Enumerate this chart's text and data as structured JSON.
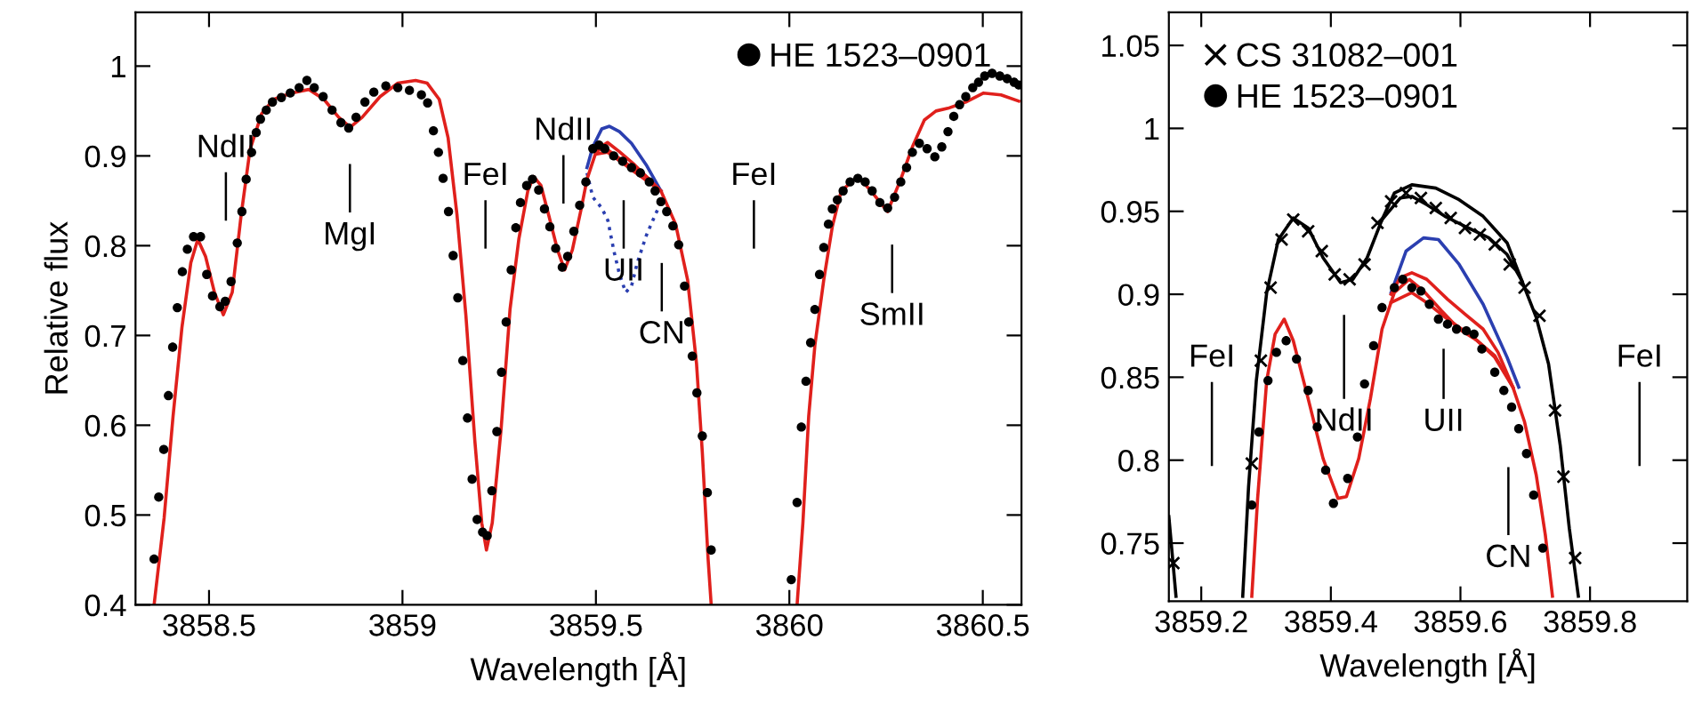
{
  "chart_data": [
    {
      "type": "line",
      "xlabel": "Wavelength [Å]",
      "ylabel": "Relative flux",
      "xlim": [
        3858.31,
        3860.6
      ],
      "ylim": [
        0.4,
        1.06
      ],
      "xticks": [
        3858.5,
        3859,
        3859.5,
        3860,
        3860.5
      ],
      "yticks": [
        0.4,
        0.5,
        0.6,
        0.7,
        0.8,
        0.9,
        1
      ],
      "legend": "top right",
      "grid": false,
      "series": [
        {
          "type": "line",
          "color": "#e0201c",
          "line_style": "solid",
          "marker": "none",
          "x": [
            3859.5,
            3859.53,
            3859.56,
            3859.6,
            3859.668
          ],
          "values": [
            0.906,
            0.915,
            0.905,
            0.89,
            0.861
          ]
        },
        {
          "type": "line",
          "color": "#e0201c",
          "line_style": "solid",
          "marker": "none",
          "x": [
            3859.5,
            3859.53,
            3859.56,
            3859.6,
            3859.668
          ],
          "values": [
            0.902,
            0.904,
            0.895,
            0.882,
            0.861
          ]
        },
        {
          "type": "line",
          "color": "#2b3fb0",
          "line_style": "solid",
          "marker": "none",
          "x": [
            3859.477,
            3859.492,
            3859.515,
            3859.535,
            3859.561,
            3859.592,
            3859.63,
            3859.668
          ],
          "values": [
            0.887,
            0.91,
            0.93,
            0.933,
            0.927,
            0.914,
            0.89,
            0.861
          ]
        },
        {
          "type": "line",
          "color": "#2b3fb0",
          "line_style": "dotted",
          "marker": "none",
          "x": [
            3859.477,
            3859.492,
            3859.515,
            3859.531,
            3859.546,
            3859.561,
            3859.577,
            3859.592,
            3859.607,
            3859.63,
            3859.653,
            3859.668
          ],
          "values": [
            0.881,
            0.854,
            0.842,
            0.828,
            0.795,
            0.768,
            0.748,
            0.755,
            0.781,
            0.811,
            0.834,
            0.848
          ]
        },
        {
          "type": "line",
          "color": "#e0201c",
          "line_style": "solid",
          "marker": "none",
          "x": [
            3858.358,
            3858.384,
            3858.407,
            3858.43,
            3858.453,
            3858.471,
            3858.491,
            3858.514,
            3858.537,
            3858.56,
            3858.583,
            3858.606,
            3858.636,
            3858.667,
            3858.713,
            3858.758,
            3858.797,
            3858.835,
            3858.865,
            3858.896,
            3858.942,
            3858.988,
            3859.034,
            3859.064,
            3859.095,
            3859.118,
            3859.141,
            3859.164,
            3859.187,
            3859.205,
            3859.217,
            3859.232,
            3859.255,
            3859.278,
            3859.301,
            3859.324,
            3859.339,
            3859.358,
            3859.378,
            3859.401,
            3859.419,
            3859.439,
            3859.462,
            3859.477,
            3859.5,
            3859.52,
            3859.546,
            3859.584,
            3859.63,
            3859.668,
            3859.706,
            3859.737,
            3859.76,
            3859.775,
            3859.79,
            3859.798,
            3859.9,
            3860.02,
            3860.035,
            3860.05,
            3860.066,
            3860.089,
            3860.111,
            3860.134,
            3860.177,
            3860.211,
            3860.254,
            3860.288,
            3860.318,
            3860.349,
            3860.379,
            3860.41,
            3860.456,
            3860.502,
            3860.547,
            3860.593
          ],
          "values": [
            0.4,
            0.497,
            0.61,
            0.709,
            0.781,
            0.807,
            0.788,
            0.748,
            0.723,
            0.748,
            0.834,
            0.907,
            0.947,
            0.963,
            0.97,
            0.974,
            0.963,
            0.943,
            0.932,
            0.943,
            0.966,
            0.981,
            0.984,
            0.981,
            0.963,
            0.92,
            0.834,
            0.722,
            0.583,
            0.491,
            0.461,
            0.491,
            0.596,
            0.729,
            0.808,
            0.861,
            0.877,
            0.867,
            0.834,
            0.795,
            0.773,
            0.795,
            0.841,
            0.874,
            0.904,
            0.91,
            0.902,
            0.89,
            0.877,
            0.861,
            0.824,
            0.762,
            0.669,
            0.57,
            0.451,
            0.4,
            null,
            0.4,
            0.491,
            0.61,
            0.689,
            0.762,
            0.821,
            0.861,
            0.877,
            0.861,
            0.838,
            0.874,
            0.91,
            0.94,
            0.95,
            0.953,
            0.96,
            0.97,
            0.968,
            0.961
          ]
        },
        {
          "type": "scatter",
          "name": "HE 1523–0901",
          "color": "#000000",
          "marker": "circle",
          "x": [
            3858.358,
            3858.37,
            3858.383,
            3858.395,
            3858.406,
            3858.418,
            3858.431,
            3858.444,
            3858.46,
            3858.478,
            3858.494,
            3858.509,
            3858.528,
            3858.542,
            3858.557,
            3858.573,
            3858.585,
            3858.596,
            3858.61,
            3858.622,
            3858.633,
            3858.648,
            3858.664,
            3858.687,
            3858.71,
            3858.733,
            3858.753,
            3858.772,
            3858.795,
            3858.818,
            3858.841,
            3858.861,
            3858.88,
            3858.903,
            3858.926,
            3858.957,
            3858.988,
            3859.018,
            3859.049,
            3859.065,
            3859.08,
            3859.093,
            3859.105,
            3859.119,
            3859.131,
            3859.143,
            3859.156,
            3859.168,
            3859.18,
            3859.193,
            3859.207,
            3859.219,
            3859.231,
            3859.244,
            3859.256,
            3859.268,
            3859.281,
            3859.293,
            3859.305,
            3859.321,
            3859.336,
            3859.352,
            3859.367,
            3859.381,
            3859.396,
            3859.413,
            3859.427,
            3859.443,
            3859.458,
            3859.474,
            3859.492,
            3859.508,
            3859.523,
            3859.546,
            3859.569,
            3859.592,
            3859.615,
            3859.638,
            3859.653,
            3859.668,
            3859.683,
            3859.699,
            3859.714,
            3859.729,
            3859.74,
            3859.749,
            3859.761,
            3859.775,
            3859.788,
            3859.798,
            3860.005,
            3860.02,
            3860.031,
            3860.043,
            3860.055,
            3860.066,
            3860.078,
            3860.089,
            3860.101,
            3860.111,
            3860.124,
            3860.139,
            3860.157,
            3860.177,
            3860.196,
            3860.214,
            3860.234,
            3860.254,
            3860.272,
            3860.288,
            3860.303,
            3860.318,
            3860.336,
            3860.356,
            3860.376,
            3860.394,
            3860.41,
            3860.425,
            3860.44,
            3860.456,
            3860.474,
            3860.489,
            3860.505,
            3860.524,
            3860.544,
            3860.563,
            3860.581,
            3860.593
          ],
          "values": [
            0.451,
            0.52,
            0.573,
            0.633,
            0.687,
            0.731,
            0.771,
            0.796,
            0.81,
            0.81,
            0.768,
            0.744,
            0.732,
            0.738,
            0.76,
            0.803,
            0.838,
            0.874,
            0.904,
            0.926,
            0.941,
            0.951,
            0.96,
            0.965,
            0.97,
            0.976,
            0.984,
            0.976,
            0.966,
            0.951,
            0.937,
            0.931,
            0.943,
            0.96,
            0.971,
            0.978,
            0.976,
            0.973,
            0.968,
            0.959,
            0.928,
            0.904,
            0.875,
            0.838,
            0.789,
            0.742,
            0.672,
            0.608,
            0.54,
            0.495,
            0.481,
            0.477,
            0.527,
            0.593,
            0.659,
            0.715,
            0.773,
            0.82,
            0.848,
            0.867,
            0.874,
            0.862,
            0.841,
            0.821,
            0.797,
            0.776,
            0.788,
            0.816,
            0.845,
            0.871,
            0.908,
            0.912,
            0.908,
            0.9,
            0.894,
            0.887,
            0.881,
            0.871,
            0.861,
            0.849,
            0.838,
            0.822,
            0.801,
            0.755,
            0.715,
            0.677,
            0.636,
            0.588,
            0.525,
            0.461,
            0.428,
            0.514,
            0.598,
            0.649,
            0.692,
            0.729,
            0.768,
            0.798,
            0.824,
            0.841,
            0.851,
            0.861,
            0.871,
            0.875,
            0.871,
            0.861,
            0.848,
            0.842,
            0.854,
            0.871,
            0.887,
            0.904,
            0.914,
            0.908,
            0.899,
            0.91,
            0.927,
            0.944,
            0.957,
            0.966,
            0.976,
            0.982,
            0.989,
            0.992,
            0.989,
            0.986,
            0.982,
            0.979
          ]
        }
      ],
      "annotations": [
        "NdII",
        "MgI",
        "FeI",
        "NdII",
        "UII",
        "CN",
        "FeI",
        "SmII"
      ]
    },
    {
      "type": "line",
      "xlabel": "Wavelength [Å]",
      "xlim": [
        3859.15,
        3859.95
      ],
      "ylim": [
        0.715,
        1.07
      ],
      "xticks": [
        3859.2,
        3859.4,
        3859.6,
        3859.8
      ],
      "yticks": [
        0.75,
        0.8,
        0.85,
        0.9,
        0.95,
        1,
        1.05
      ],
      "legend": "top left",
      "grid": false,
      "series": [
        {
          "type": "line",
          "color": "#000000",
          "line_style": "solid",
          "marker": "none",
          "x": [
            3859.15,
            3859.161,
            3859.2,
            3859.264,
            3859.273,
            3859.285,
            3859.301,
            3859.319,
            3859.342,
            3859.365,
            3859.388,
            3859.415,
            3859.434,
            3859.456,
            3859.479,
            3859.507,
            3859.525,
            3859.548,
            3859.576,
            3859.607,
            3859.644,
            3859.672,
            3859.695,
            3859.717,
            3859.736,
            3859.754,
            3859.768,
            3859.782
          ],
          "values": [
            0.766,
            0.718,
            null,
            0.718,
            0.784,
            0.848,
            0.901,
            0.933,
            0.946,
            0.94,
            0.922,
            0.907,
            0.909,
            0.922,
            0.945,
            0.958,
            0.959,
            0.954,
            0.947,
            0.941,
            0.934,
            0.924,
            0.908,
            0.886,
            0.858,
            0.809,
            0.759,
            0.718
          ]
        },
        {
          "type": "line",
          "color": "#000000",
          "line_style": "solid",
          "marker": "none",
          "x": [
            3859.479,
            3859.498,
            3859.525,
            3859.562,
            3859.598,
            3859.635,
            3859.672,
            3859.695
          ],
          "values": [
            0.945,
            0.961,
            0.966,
            0.964,
            0.957,
            0.947,
            0.931,
            0.908
          ]
        },
        {
          "type": "line",
          "color": "#2b3fb0",
          "line_style": "solid",
          "marker": "none",
          "x": [
            3859.493,
            3859.516,
            3859.543,
            3859.566,
            3859.598,
            3859.635,
            3859.672,
            3859.69
          ],
          "values": [
            0.901,
            0.926,
            0.934,
            0.933,
            0.918,
            0.894,
            0.862,
            0.844
          ]
        },
        {
          "type": "line",
          "color": "#e0201c",
          "line_style": "solid",
          "marker": "none",
          "x": [
            3859.493,
            3859.507,
            3859.525,
            3859.548,
            3859.58,
            3859.607,
            3859.635,
            3859.658,
            3859.681
          ],
          "values": [
            0.9,
            0.91,
            0.913,
            0.909,
            0.897,
            0.888,
            0.879,
            0.865,
            0.844
          ]
        },
        {
          "type": "line",
          "color": "#e0201c",
          "line_style": "solid",
          "marker": "none",
          "x": [
            3859.493,
            3859.525,
            3859.548,
            3859.58,
            3859.62,
            3859.653,
            3859.681
          ],
          "values": [
            0.895,
            0.901,
            0.895,
            0.885,
            0.874,
            0.863,
            0.844
          ]
        },
        {
          "type": "line",
          "color": "#e0201c",
          "line_style": "solid",
          "marker": "none",
          "x": [
            3859.278,
            3859.287,
            3859.301,
            3859.314,
            3859.328,
            3859.342,
            3859.365,
            3859.388,
            3859.411,
            3859.424,
            3859.443,
            3859.461,
            3859.479,
            3859.498,
            3859.521,
            3859.543,
            3859.571,
            3859.598,
            3859.626,
            3859.653,
            3859.681,
            3859.699,
            3859.717,
            3859.731,
            3859.742
          ],
          "values": [
            0.718,
            0.777,
            0.848,
            0.876,
            0.885,
            0.872,
            0.837,
            0.801,
            0.777,
            0.778,
            0.801,
            0.837,
            0.879,
            0.901,
            0.909,
            0.902,
            0.89,
            0.879,
            0.872,
            0.862,
            0.844,
            0.823,
            0.791,
            0.755,
            0.718
          ]
        },
        {
          "type": "scatter",
          "name": "CS 31082–001",
          "color": "#000000",
          "marker": "cross",
          "x": [
            3859.157,
            3859.261,
            3859.278,
            3859.292,
            3859.307,
            3859.324,
            3859.342,
            3859.365,
            3859.386,
            3859.406,
            3859.429,
            3859.452,
            3859.472,
            3859.493,
            3859.516,
            3859.539,
            3859.562,
            3859.585,
            3859.607,
            3859.63,
            3859.653,
            3859.676,
            3859.699,
            3859.722,
            3859.746,
            3859.759,
            3859.777
          ],
          "values": [
            0.738,
            null,
            0.798,
            0.86,
            0.904,
            0.933,
            0.945,
            0.938,
            0.926,
            0.912,
            0.909,
            0.918,
            0.943,
            0.956,
            0.961,
            0.958,
            0.952,
            0.946,
            0.94,
            0.936,
            0.93,
            0.918,
            0.904,
            0.887,
            0.83,
            0.79,
            0.741
          ]
        },
        {
          "type": "scatter",
          "name": "HE 1523–0901",
          "color": "#000000",
          "marker": "circle",
          "x": [
            3859.278,
            3859.289,
            3859.303,
            3859.316,
            3859.331,
            3859.347,
            3859.365,
            3859.379,
            3859.392,
            3859.404,
            3859.426,
            3859.441,
            3859.452,
            3859.466,
            3859.479,
            3859.498,
            3859.511,
            3859.525,
            3859.539,
            3859.552,
            3859.566,
            3859.58,
            3859.594,
            3859.609,
            3859.621,
            3859.633,
            3859.653,
            3859.667,
            3859.679,
            3859.69,
            3859.702,
            3859.713,
            3859.727
          ],
          "values": [
            0.773,
            0.817,
            0.848,
            0.865,
            0.872,
            0.861,
            0.842,
            0.82,
            0.794,
            0.774,
            0.789,
            0.814,
            0.846,
            0.869,
            0.892,
            0.904,
            0.909,
            0.904,
            0.902,
            0.894,
            0.885,
            0.882,
            0.879,
            0.878,
            0.876,
            0.867,
            0.853,
            0.842,
            0.832,
            0.819,
            0.804,
            0.779,
            0.747
          ]
        }
      ],
      "annotations": [
        "FeI",
        "NdII",
        "UII",
        "CN",
        "FeI"
      ]
    }
  ]
}
